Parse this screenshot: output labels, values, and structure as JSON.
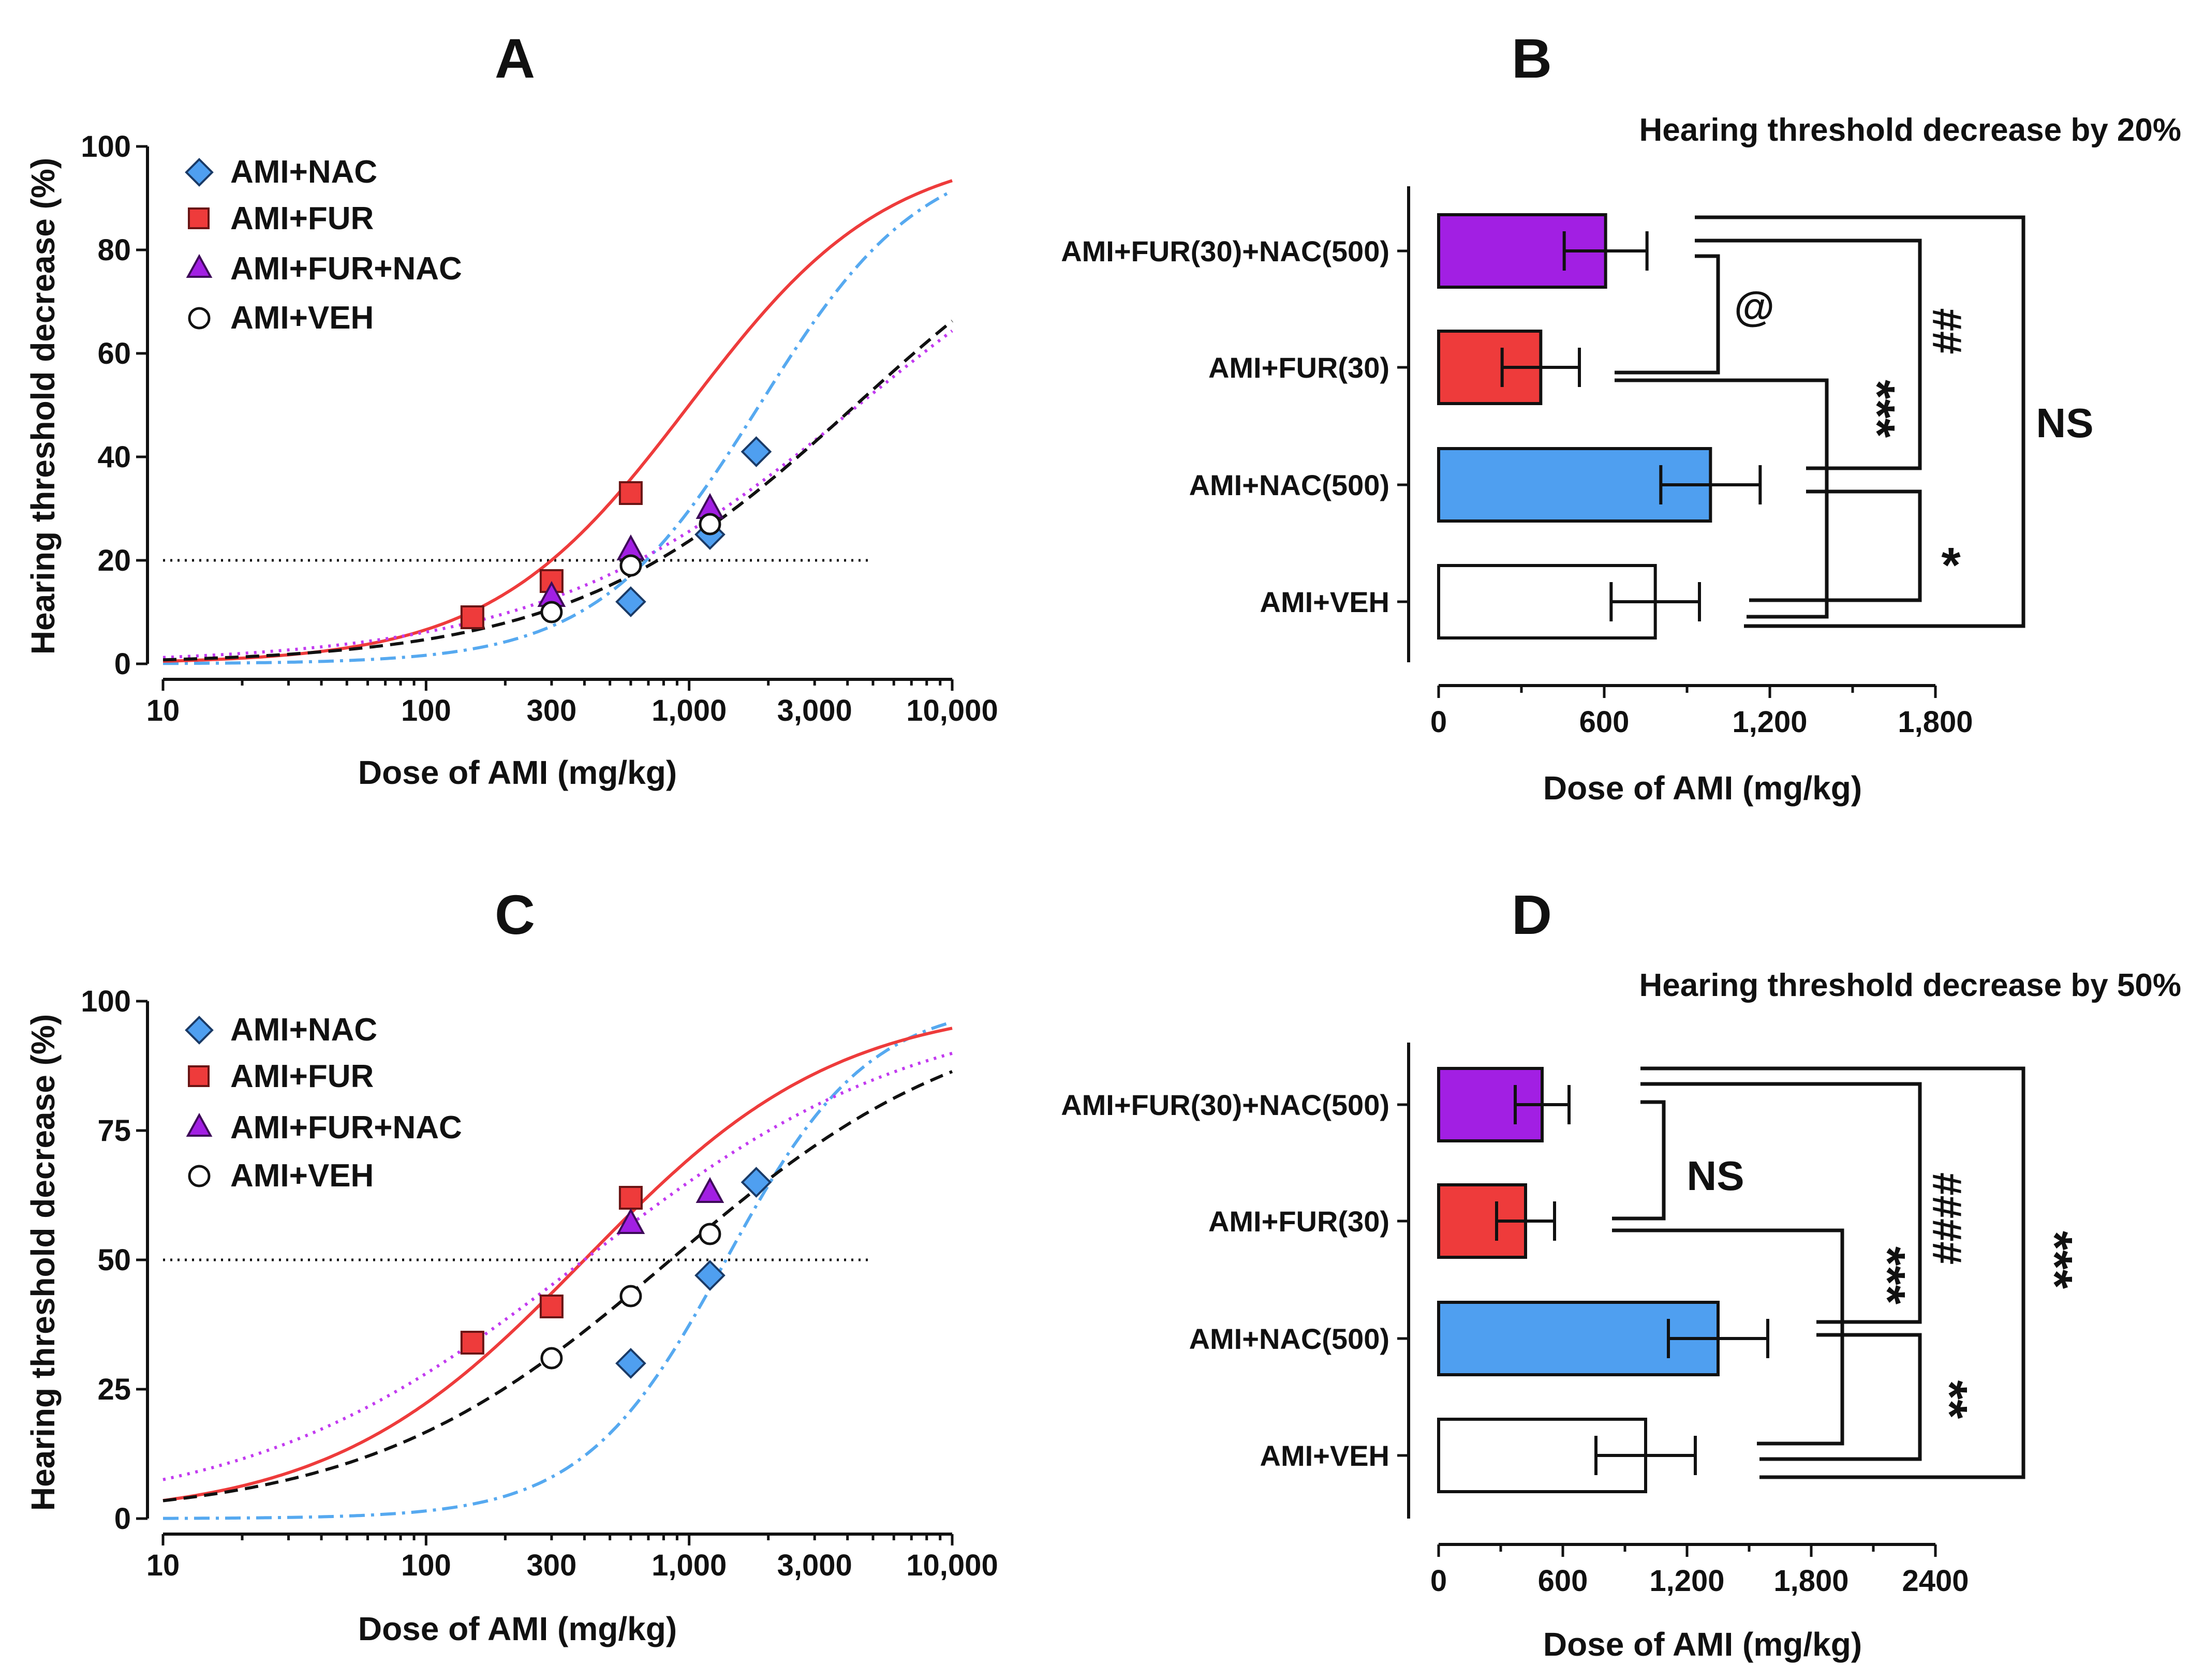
{
  "colors": {
    "nac": "#4f9ff0",
    "fur": "#ee3b3b",
    "furnac": "#a21fe3",
    "veh": "#ffffff",
    "furnac_line": "#c23af0",
    "nac_line": "#56a9f0",
    "veh_line": "#111111",
    "fur_line": "#ee3b3b"
  },
  "legend": [
    "AMI+NAC",
    "AMI+FUR",
    "AMI+FUR+NAC",
    "AMI+VEH"
  ],
  "chart_data": [
    {
      "panel": "A",
      "type": "scatter",
      "xscale": "log",
      "xlabel": "Dose of AMI (mg/kg)",
      "ylabel": "Hearing threshold decrease (%)",
      "xlim": [
        10,
        10000
      ],
      "ylim": [
        0,
        100
      ],
      "xticks": [
        10,
        100,
        300,
        1000,
        3000,
        10000
      ],
      "xtick_labels": [
        "10",
        "100",
        "300",
        "1,000",
        "3,000",
        "10,000"
      ],
      "yticks": [
        0,
        20,
        40,
        60,
        80,
        100
      ],
      "ytick_labels": [
        "0",
        "20",
        "40",
        "60",
        "80",
        "100"
      ],
      "reference_line": 20,
      "series": [
        {
          "name": "AMI+NAC",
          "key": "nac",
          "marker": "diamond",
          "line": "dashdot",
          "points": [
            [
              600,
              12
            ],
            [
              1200,
              25
            ],
            [
              1800,
              41
            ]
          ],
          "fit": {
            "ec50": 1850,
            "hill": 1.4,
            "top": 100
          }
        },
        {
          "name": "AMI+FUR",
          "key": "fur",
          "marker": "square",
          "line": "solid",
          "points": [
            [
              150,
              9
            ],
            [
              300,
              16
            ],
            [
              600,
              33
            ]
          ],
          "fit": {
            "ec50": 1000,
            "hill": 1.15,
            "top": 100
          }
        },
        {
          "name": "AMI+FUR+NAC",
          "key": "furnac",
          "marker": "triangle",
          "line": "dotted",
          "points": [
            [
              300,
              13
            ],
            [
              600,
              22
            ],
            [
              1200,
              30
            ]
          ],
          "fit": {
            "ec50": 4400,
            "hill": 0.72,
            "top": 100
          }
        },
        {
          "name": "AMI+VEH",
          "key": "veh",
          "marker": "circle",
          "line": "dashed",
          "points": [
            [
              300,
              10
            ],
            [
              600,
              19
            ],
            [
              1200,
              27
            ]
          ],
          "fit": {
            "ec50": 4300,
            "hill": 0.8,
            "top": 100
          }
        }
      ]
    },
    {
      "panel": "B",
      "type": "bar",
      "orientation": "horizontal",
      "title": "Hearing threshold decrease by 20%",
      "xlabel": "Dose of AMI (mg/kg)",
      "xlim": [
        0,
        1800
      ],
      "xticks": [
        0,
        600,
        1200,
        1800
      ],
      "xtick_labels": [
        "0",
        "600",
        "1,200",
        "1,800"
      ],
      "categories": [
        "AMI+FUR(30)+NAC(500)",
        "AMI+FUR(30)",
        "AMI+NAC(500)",
        "AMI+VEH"
      ],
      "values": [
        605,
        370,
        985,
        785
      ],
      "errors": [
        150,
        140,
        180,
        160
      ],
      "keys": [
        "furnac",
        "fur",
        "nac",
        "veh"
      ],
      "significance": [
        "@",
        "***",
        "##",
        "NS",
        "*"
      ]
    },
    {
      "panel": "C",
      "type": "scatter",
      "xscale": "log",
      "xlabel": "Dose of AMI (mg/kg)",
      "ylabel": "Hearing threshold decrease (%)",
      "xlim": [
        10,
        10000
      ],
      "ylim": [
        0,
        100
      ],
      "xticks": [
        10,
        100,
        300,
        1000,
        3000,
        10000
      ],
      "xtick_labels": [
        "10",
        "100",
        "300",
        "1,000",
        "3,000",
        "10,000"
      ],
      "yticks": [
        0,
        25,
        50,
        75,
        100
      ],
      "ytick_labels": [
        "0",
        "25",
        "50",
        "75",
        "100"
      ],
      "reference_line": 50,
      "series": [
        {
          "name": "AMI+NAC",
          "key": "nac",
          "marker": "diamond",
          "line": "dashdot",
          "points": [
            [
              600,
              30
            ],
            [
              1200,
              47
            ],
            [
              1800,
              65
            ]
          ],
          "fit": {
            "ec50": 1380,
            "hill": 1.6,
            "top": 100
          }
        },
        {
          "name": "AMI+FUR",
          "key": "fur",
          "marker": "square",
          "line": "solid",
          "points": [
            [
              150,
              34
            ],
            [
              300,
              41
            ],
            [
              600,
              62
            ]
          ],
          "fit": {
            "ec50": 400,
            "hill": 0.9,
            "top": 100
          }
        },
        {
          "name": "AMI+FUR+NAC",
          "key": "furnac",
          "marker": "triangle",
          "line": "dotted",
          "points": [
            [
              600,
              57
            ],
            [
              1200,
              63
            ]
          ],
          "fit": {
            "ec50": 400,
            "hill": 0.68,
            "top": 100
          }
        },
        {
          "name": "AMI+VEH",
          "key": "veh",
          "marker": "circle",
          "line": "dashed",
          "points": [
            [
              300,
              31
            ],
            [
              600,
              43
            ],
            [
              1200,
              55
            ]
          ],
          "fit": {
            "ec50": 850,
            "hill": 0.75,
            "top": 100
          }
        }
      ]
    },
    {
      "panel": "D",
      "type": "bar",
      "orientation": "horizontal",
      "title": "Hearing threshold decrease by 50%",
      "xlabel": "Dose of AMI (mg/kg)",
      "xlim": [
        0,
        2400
      ],
      "xticks": [
        0,
        600,
        1200,
        1800,
        2400
      ],
      "xtick_labels": [
        "0",
        "600",
        "1,200",
        "1,800",
        "2400"
      ],
      "categories": [
        "AMI+FUR(30)+NAC(500)",
        "AMI+FUR(30)",
        "AMI+NAC(500)",
        "AMI+VEH"
      ],
      "values": [
        500,
        420,
        1350,
        1000
      ],
      "errors": [
        130,
        140,
        240,
        240
      ],
      "keys": [
        "furnac",
        "fur",
        "nac",
        "veh"
      ],
      "significance": [
        "NS",
        "***",
        "####",
        "***",
        "**"
      ]
    }
  ]
}
